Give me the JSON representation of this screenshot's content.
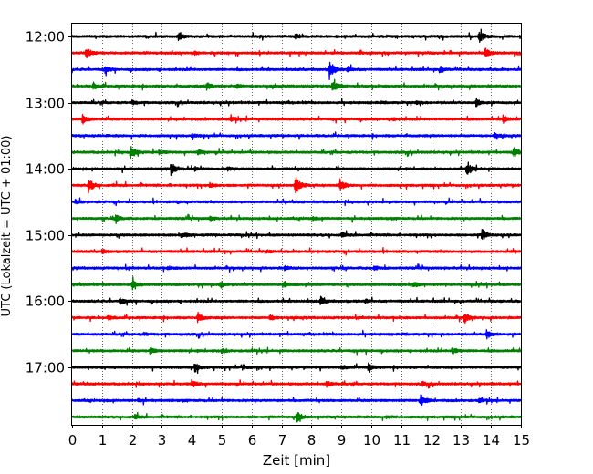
{
  "chart_data": {
    "type": "line",
    "title": "",
    "xlabel": "Zeit  [min]",
    "ylabel": "UTC (Lokalzeit = UTC + 01:00)",
    "xlim": [
      0,
      15
    ],
    "x_ticks": [
      "0",
      "1",
      "2",
      "3",
      "4",
      "5",
      "6",
      "7",
      "8",
      "9",
      "10",
      "11",
      "12",
      "13",
      "14",
      "15"
    ],
    "y_ticks": [
      "12:00",
      "13:00",
      "14:00",
      "15:00",
      "16:00",
      "17:00"
    ],
    "grid": "vertical dotted lines at each minute",
    "trace_colors": [
      "#000000",
      "#ff0000",
      "#0000ff",
      "#008000"
    ],
    "trace_interval_min": 15,
    "series": [
      {
        "start": "12:00",
        "color": "#000000",
        "events": [
          [
            3.55,
            0.8
          ],
          [
            7.45,
            0.45
          ],
          [
            13.6,
            1.0
          ]
        ]
      },
      {
        "start": "12:15",
        "color": "#ff0000",
        "events": [
          [
            0.45,
            1.0
          ],
          [
            13.8,
            0.7
          ],
          [
            4.1,
            0.25
          ]
        ]
      },
      {
        "start": "12:30",
        "color": "#0000ff",
        "events": [
          [
            1.1,
            0.5
          ],
          [
            8.6,
            1.5
          ],
          [
            9.2,
            0.6
          ],
          [
            12.3,
            0.5
          ]
        ]
      },
      {
        "start": "12:45",
        "color": "#008000",
        "events": [
          [
            0.7,
            0.5
          ],
          [
            4.5,
            0.6
          ],
          [
            8.7,
            0.9
          ],
          [
            5.5,
            0.3
          ]
        ]
      },
      {
        "start": "13:00",
        "color": "#000000",
        "events": [
          [
            13.5,
            0.6
          ],
          [
            2.0,
            0.3
          ],
          [
            11.5,
            0.3
          ]
        ]
      },
      {
        "start": "13:15",
        "color": "#ff0000",
        "events": [
          [
            0.35,
            0.8
          ],
          [
            5.3,
            0.4
          ],
          [
            14.4,
            0.6
          ],
          [
            10.7,
            0.3
          ]
        ]
      },
      {
        "start": "13:30",
        "color": "#0000ff",
        "events": [
          [
            14.1,
            0.4
          ],
          [
            4.0,
            0.2
          ]
        ]
      },
      {
        "start": "13:45",
        "color": "#008000",
        "events": [
          [
            1.95,
            1.2
          ],
          [
            14.75,
            0.7
          ],
          [
            4.2,
            0.4
          ],
          [
            2.9,
            0.3
          ]
        ]
      },
      {
        "start": "14:00",
        "color": "#000000",
        "events": [
          [
            3.3,
            1.1
          ],
          [
            13.2,
            0.9
          ],
          [
            4.1,
            0.3
          ],
          [
            5.2,
            0.3
          ]
        ]
      },
      {
        "start": "14:15",
        "color": "#ff0000",
        "events": [
          [
            0.55,
            1.1
          ],
          [
            7.45,
            1.7
          ],
          [
            8.95,
            0.9
          ],
          [
            4.6,
            0.4
          ]
        ]
      },
      {
        "start": "14:30",
        "color": "#0000ff",
        "events": [
          [
            0.1,
            0.3
          ],
          [
            3.5,
            0.2
          ]
        ]
      },
      {
        "start": "14:45",
        "color": "#008000",
        "events": [
          [
            1.45,
            0.6
          ],
          [
            4.6,
            0.3
          ],
          [
            8.0,
            0.2
          ]
        ]
      },
      {
        "start": "15:00",
        "color": "#000000",
        "events": [
          [
            13.7,
            0.9
          ],
          [
            3.7,
            0.3
          ],
          [
            9.0,
            0.3
          ]
        ]
      },
      {
        "start": "15:15",
        "color": "#ff0000",
        "events": [
          [
            1.0,
            0.3
          ],
          [
            6.5,
            0.2
          ]
        ]
      },
      {
        "start": "15:30",
        "color": "#0000ff",
        "events": [
          [
            7.1,
            0.3
          ],
          [
            10.1,
            0.3
          ],
          [
            3.2,
            0.2
          ]
        ]
      },
      {
        "start": "15:45",
        "color": "#008000",
        "events": [
          [
            2.0,
            0.8
          ],
          [
            4.95,
            0.6
          ],
          [
            7.1,
            0.4
          ],
          [
            11.4,
            0.4
          ]
        ]
      },
      {
        "start": "16:00",
        "color": "#000000",
        "events": [
          [
            1.6,
            0.5
          ],
          [
            8.3,
            0.6
          ],
          [
            9.8,
            0.3
          ]
        ]
      },
      {
        "start": "16:15",
        "color": "#ff0000",
        "events": [
          [
            4.2,
            0.8
          ],
          [
            6.6,
            0.5
          ],
          [
            13.1,
            0.9
          ],
          [
            1.2,
            0.3
          ]
        ]
      },
      {
        "start": "16:30",
        "color": "#0000ff",
        "events": [
          [
            13.85,
            0.7
          ],
          [
            2.4,
            0.2
          ]
        ]
      },
      {
        "start": "16:45",
        "color": "#008000",
        "events": [
          [
            2.6,
            0.5
          ],
          [
            12.7,
            0.6
          ],
          [
            5.0,
            0.3
          ]
        ]
      },
      {
        "start": "17:00",
        "color": "#000000",
        "events": [
          [
            4.1,
            0.8
          ],
          [
            5.7,
            0.4
          ],
          [
            9.0,
            0.3
          ],
          [
            9.9,
            0.6
          ]
        ]
      },
      {
        "start": "17:15",
        "color": "#ff0000",
        "events": [
          [
            4.0,
            0.6
          ],
          [
            8.5,
            0.5
          ],
          [
            11.7,
            0.3
          ]
        ]
      },
      {
        "start": "17:30",
        "color": "#0000ff",
        "events": [
          [
            11.65,
            0.9
          ],
          [
            13.6,
            0.3
          ],
          [
            2.2,
            0.2
          ]
        ]
      },
      {
        "start": "17:45",
        "color": "#008000",
        "events": [
          [
            7.5,
            0.9
          ],
          [
            2.1,
            0.3
          ],
          [
            10.5,
            0.2
          ]
        ]
      }
    ]
  }
}
